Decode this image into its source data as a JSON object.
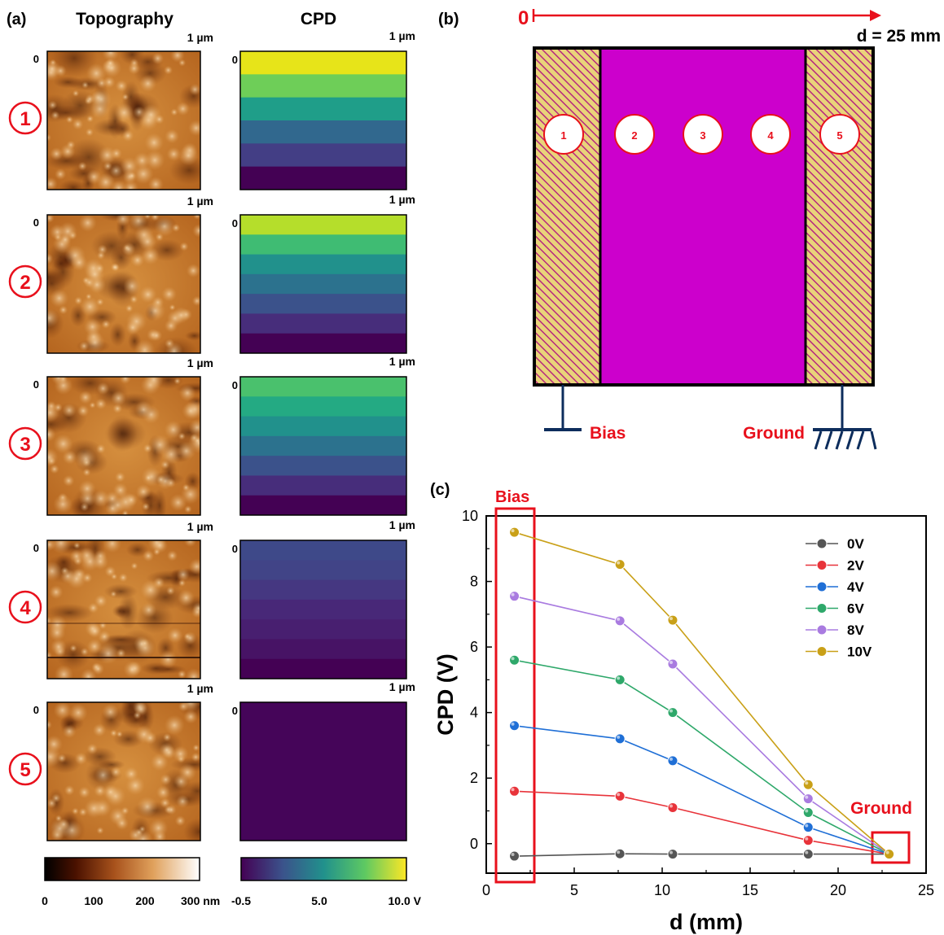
{
  "panel_a": {
    "label": "(a)",
    "col_topo": "Topography",
    "col_cpd": "CPD",
    "scale_label": "1 µm",
    "origin_label": "0",
    "rows": [
      {
        "marker": "1",
        "cpd_bands": [
          "#e7e419",
          "#6ece58",
          "#1f9e89",
          "#31688e",
          "#433e85",
          "#440154"
        ]
      },
      {
        "marker": "2",
        "cpd_bands": [
          "#b5de2b",
          "#3fbc73",
          "#21918c",
          "#2c728e",
          "#3b528b",
          "#472d7b",
          "#440154"
        ]
      },
      {
        "marker": "3",
        "cpd_bands": [
          "#4ac16d",
          "#24aa83",
          "#21918c",
          "#2c728e",
          "#3b528b",
          "#472d7b",
          "#440154"
        ]
      },
      {
        "marker": "4",
        "cpd_bands": [
          "#3e4989",
          "#414487",
          "#453781",
          "#482878",
          "#481f70",
          "#471365",
          "#440154"
        ]
      },
      {
        "marker": "5",
        "cpd_bands": [
          "#450559"
        ]
      }
    ],
    "topo_colorbar": {
      "ticks": [
        "0",
        "100",
        "200",
        "300 nm"
      ]
    },
    "cpd_colorbar": {
      "ticks": [
        "-0.5",
        "5.0",
        "10.0 V"
      ]
    }
  },
  "panel_b": {
    "label": "(b)",
    "origin": "0",
    "distance": "d = 25 mm",
    "positions": [
      "1",
      "2",
      "3",
      "4",
      "5"
    ],
    "bias_label": "Bias",
    "ground_label": "Ground"
  },
  "panel_c": {
    "label": "(c)",
    "bias_label": "Bias",
    "ground_label": "Ground"
  },
  "chart_data": {
    "type": "line",
    "xlabel": "d (mm)",
    "ylabel": "CPD (V)",
    "xlim": [
      0,
      25
    ],
    "ylim": [
      -0.9,
      10
    ],
    "xticks": [
      "0",
      "5",
      "10",
      "15",
      "20",
      "25"
    ],
    "yticks": [
      "0",
      "2",
      "4",
      "6",
      "8",
      "10"
    ],
    "legend_position": "top-right",
    "grid": false,
    "x": [
      1.6,
      7.6,
      10.6,
      18.3,
      22.9
    ],
    "series": [
      {
        "name": "0V",
        "color": "#555555",
        "values": [
          -0.38,
          -0.31,
          -0.32,
          -0.32,
          -0.32
        ]
      },
      {
        "name": "2V",
        "color": "#e8333a",
        "values": [
          1.6,
          1.45,
          1.1,
          0.1,
          -0.32
        ]
      },
      {
        "name": "4V",
        "color": "#1f6fd6",
        "values": [
          3.6,
          3.2,
          2.53,
          0.5,
          -0.32
        ]
      },
      {
        "name": "6V",
        "color": "#2ea86a",
        "values": [
          5.6,
          5.0,
          4.0,
          0.95,
          -0.32
        ]
      },
      {
        "name": "8V",
        "color": "#a97be0",
        "values": [
          7.55,
          6.8,
          5.48,
          1.37,
          -0.32
        ]
      },
      {
        "name": "10V",
        "color": "#c9a017",
        "values": [
          9.5,
          8.52,
          6.82,
          1.8,
          -0.32
        ]
      }
    ]
  }
}
